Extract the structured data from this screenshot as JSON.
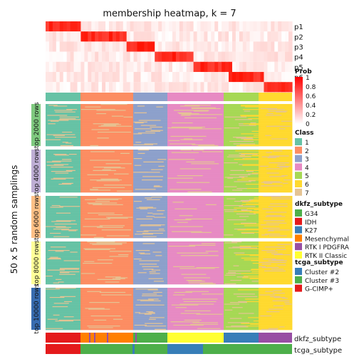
{
  "chart_data": {
    "type": "heatmap",
    "title": "membership heatmap, k = 7",
    "side_label": "50 x 5 random samplings",
    "groups": [
      "top 2000 rows",
      "top 4000 rows",
      "top 6000 rows",
      "top 8000 rows",
      "top 10000 rows"
    ],
    "group_colors": [
      "#7FC97F",
      "#BEAED4",
      "#FDC086",
      "#FFFF99",
      "#386CB0"
    ],
    "prob_rows": [
      "p1",
      "p2",
      "p3",
      "p4",
      "p5",
      "p6",
      "p7"
    ],
    "prob_segments": [
      0.12,
      0.17,
      0.1,
      0.15,
      0.13,
      0.12,
      0.11
    ],
    "bottom_tracks": [
      "dkfz_subtype",
      "tcga_subtype"
    ],
    "legend_prob": {
      "title": "Prob",
      "ticks": [
        "1",
        "0.8",
        "0.6",
        "0.4",
        "0.2",
        "0"
      ],
      "colors": [
        "#FF0000",
        "#FFFFFF"
      ]
    },
    "legend_class": {
      "title": "Class",
      "items": [
        {
          "label": "1",
          "color": "#66C2A5"
        },
        {
          "label": "2",
          "color": "#FC8D62"
        },
        {
          "label": "3",
          "color": "#8DA0CB"
        },
        {
          "label": "4",
          "color": "#E78AC3"
        },
        {
          "label": "5",
          "color": "#A6D854"
        },
        {
          "label": "6",
          "color": "#FFD92F"
        },
        {
          "label": "7",
          "color": "#E5C494"
        }
      ]
    },
    "legend_dkfz": {
      "title": "dkfz_subtype",
      "items": [
        {
          "label": "G34",
          "color": "#4DAF4A"
        },
        {
          "label": "IDH",
          "color": "#E41A1C"
        },
        {
          "label": "K27",
          "color": "#377EB8"
        },
        {
          "label": "Mesenchymal",
          "color": "#FF7F00"
        },
        {
          "label": "RTK I PDGFRA",
          "color": "#984EA3"
        },
        {
          "label": "RTK II Classic",
          "color": "#FFFF33"
        }
      ]
    },
    "legend_tcga": {
      "title": "tcga_subtype",
      "items": [
        {
          "label": "Cluster #2",
          "color": "#377EB8"
        },
        {
          "label": "Cluster #3",
          "color": "#4DAF4A"
        },
        {
          "label": "G-CIMP+",
          "color": "#E41A1C"
        }
      ]
    }
  }
}
